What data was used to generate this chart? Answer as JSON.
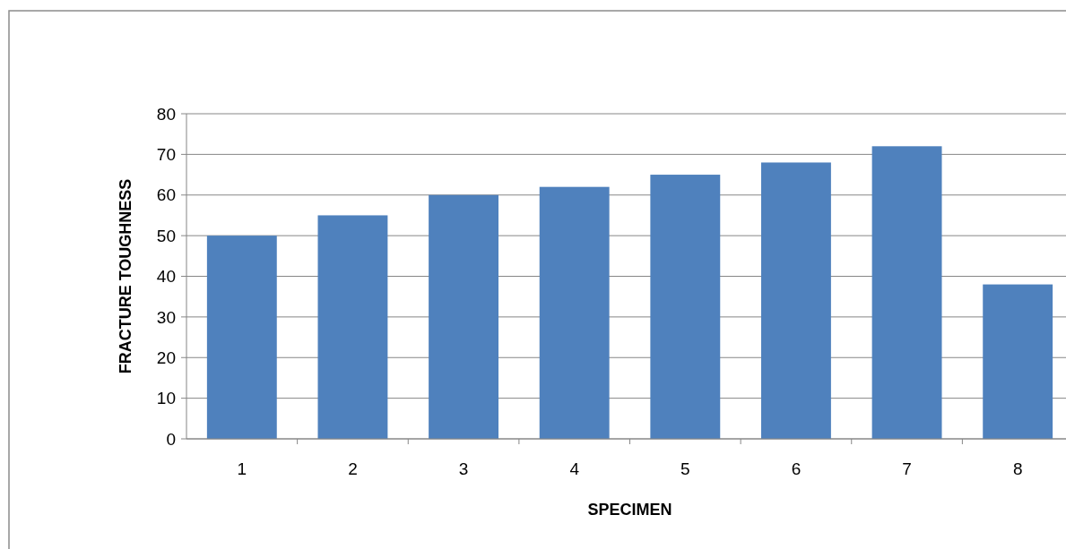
{
  "chart_data": {
    "type": "bar",
    "xlabel": "SPECIMEN",
    "ylabel": "FRACTURE TOUGHNESS",
    "categories": [
      "1",
      "2",
      "3",
      "4",
      "5",
      "6",
      "7",
      "8"
    ],
    "values": [
      50,
      55,
      60,
      62,
      65,
      68,
      72,
      38
    ],
    "color": "#4f81bd",
    "ylim": [
      0,
      80
    ],
    "yticks": [
      0,
      10,
      20,
      30,
      40,
      50,
      60,
      70,
      80
    ],
    "grid": "y"
  }
}
